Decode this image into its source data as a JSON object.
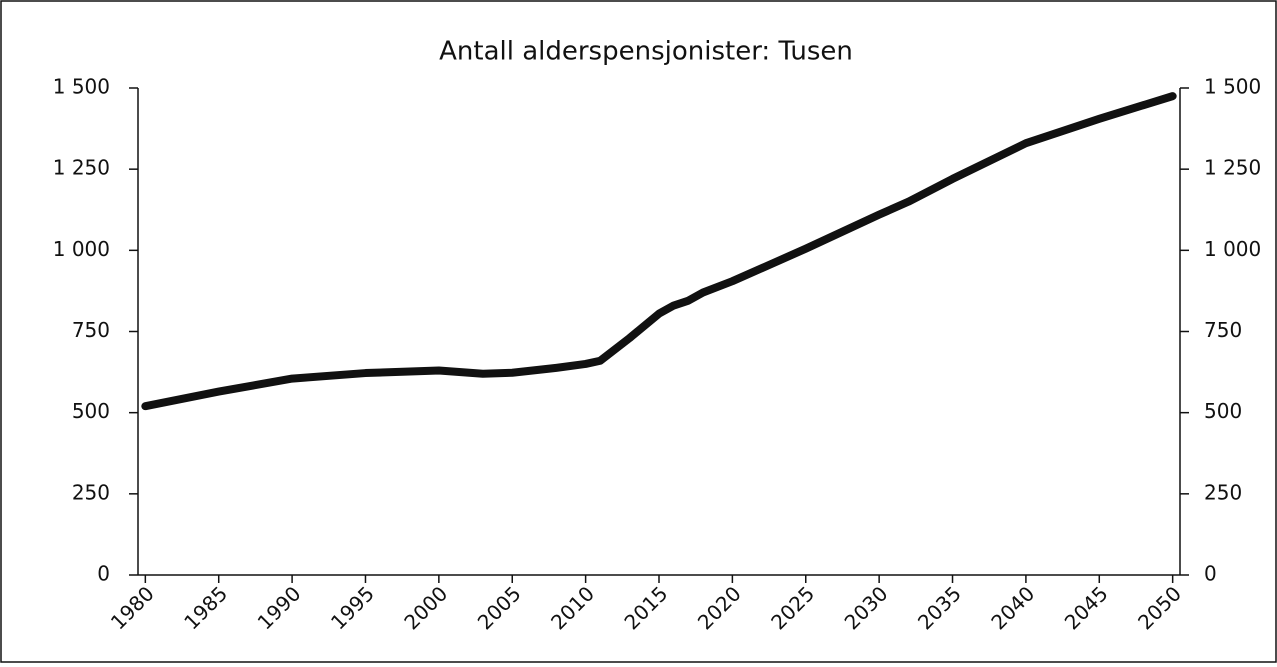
{
  "chart_data": {
    "type": "line",
    "title": "Antall alderspensjonister: Tusen",
    "x": [
      1980,
      1985,
      1990,
      1995,
      2000,
      2003,
      2005,
      2008,
      2010,
      2011,
      2013,
      2015,
      2016,
      2017,
      2018,
      2020,
      2025,
      2030,
      2032,
      2035,
      2040,
      2045,
      2050
    ],
    "series": [
      {
        "name": "Antall alderspensjonister",
        "color": "#111111",
        "values": [
          520,
          565,
          605,
          622,
          630,
          620,
          623,
          638,
          650,
          660,
          730,
          805,
          830,
          845,
          870,
          905,
          1005,
          1110,
          1150,
          1220,
          1330,
          1405,
          1475
        ]
      }
    ],
    "xlim": [
      1979.5,
      2050.5
    ],
    "xticks": [
      1980,
      1985,
      1990,
      1995,
      2000,
      2005,
      2010,
      2015,
      2020,
      2025,
      2030,
      2035,
      2040,
      2045,
      2050
    ],
    "ylim": [
      0,
      1500
    ],
    "yticks": [
      0,
      250,
      500,
      750,
      {
        "value": 1000,
        "label": "1 000"
      },
      {
        "value": 1250,
        "label": "1 250"
      },
      {
        "value": 1500,
        "label": "1 500"
      }
    ],
    "grid": false
  }
}
